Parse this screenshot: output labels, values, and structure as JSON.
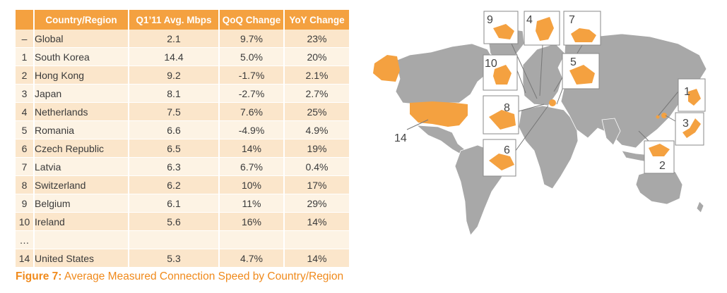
{
  "chart_data": {
    "type": "table",
    "columns": [
      "",
      "Country/Region",
      "Q1’11 Avg. Mbps",
      "QoQ Change",
      "YoY Change"
    ],
    "rows": [
      [
        "–",
        "Global",
        "2.1",
        "9.7%",
        "23%"
      ],
      [
        "1",
        "South Korea",
        "14.4",
        "5.0%",
        "20%"
      ],
      [
        "2",
        "Hong Kong",
        "9.2",
        "-1.7%",
        "2.1%"
      ],
      [
        "3",
        "Japan",
        "8.1",
        "-2.7%",
        "2.7%"
      ],
      [
        "4",
        "Netherlands",
        "7.5",
        "7.6%",
        "25%"
      ],
      [
        "5",
        "Romania",
        "6.6",
        "-4.9%",
        "4.9%"
      ],
      [
        "6",
        "Czech Republic",
        "6.5",
        "14%",
        "19%"
      ],
      [
        "7",
        "Latvia",
        "6.3",
        "6.7%",
        "0.4%"
      ],
      [
        "8",
        "Switzerland",
        "6.2",
        "10%",
        "17%"
      ],
      [
        "9",
        "Belgium",
        "6.1",
        "11%",
        "29%"
      ],
      [
        "10",
        "Ireland",
        "5.6",
        "16%",
        "14%"
      ],
      [
        "…",
        "",
        "",
        "",
        ""
      ],
      [
        "14",
        "United States",
        "5.3",
        "4.7%",
        "14%"
      ]
    ]
  },
  "caption": {
    "label": "Figure 7:",
    "text": " Average Measured Connection Speed by Country/Region"
  },
  "map": {
    "callouts": [
      "9",
      "4",
      "7",
      "10",
      "5",
      "8",
      "6",
      "1",
      "3",
      "2",
      "14"
    ]
  },
  "colors": {
    "header": "#f4a140",
    "row_dark": "#fbe6cb",
    "row_light": "#fdf3e4",
    "highlight": "#f4a140",
    "land": "#a8a8a8",
    "caption": "#f08a1c"
  }
}
